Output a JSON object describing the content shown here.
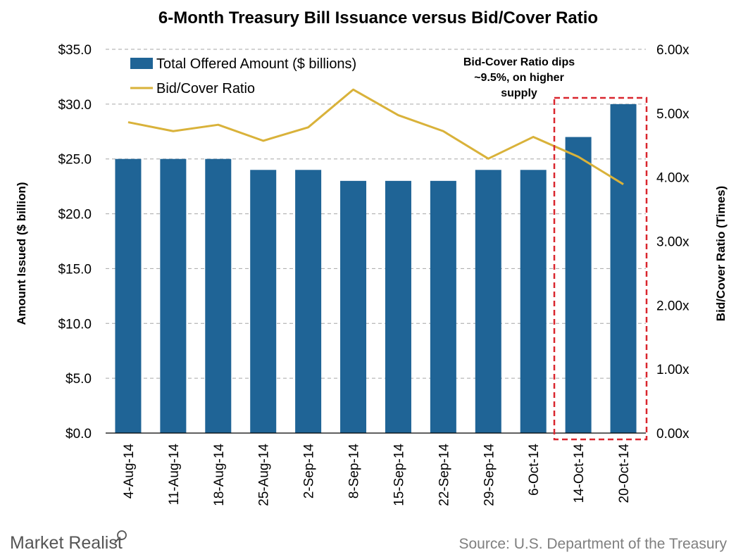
{
  "chart_data": {
    "type": "bar",
    "title": "6-Month Treasury Bill Issuance versus Bid/Cover Ratio",
    "categories": [
      "4-Aug-14",
      "11-Aug-14",
      "18-Aug-14",
      "25-Aug-14",
      "2-Sep-14",
      "8-Sep-14",
      "15-Sep-14",
      "22-Sep-14",
      "29-Sep-14",
      "6-Oct-14",
      "14-Oct-14",
      "20-Oct-14"
    ],
    "series": [
      {
        "name": "Total Offered Amount ($ billions)",
        "type": "bar",
        "axis": "left",
        "color": "#1f6496",
        "values": [
          25,
          25,
          25,
          24,
          24,
          23,
          23,
          23,
          24,
          24,
          27,
          30
        ]
      },
      {
        "name": "Bid/Cover Ratio",
        "type": "line",
        "axis": "right",
        "color": "#d9b23a",
        "values": [
          4.86,
          4.72,
          4.82,
          4.57,
          4.78,
          5.37,
          4.97,
          4.72,
          4.29,
          4.63,
          4.32,
          3.89
        ]
      }
    ],
    "ylabel": "Amount Issued ($ billion)",
    "y2label": "Bid/Cover Ratio (Times)",
    "ylim": [
      0,
      35
    ],
    "y2lim": [
      0,
      6
    ],
    "yticks": [
      "$0.0",
      "$5.0",
      "$10.0",
      "$15.0",
      "$20.0",
      "$25.0",
      "$30.0",
      "$35.0"
    ],
    "y2ticks": [
      "0.00x",
      "1.00x",
      "2.00x",
      "3.00x",
      "4.00x",
      "5.00x",
      "6.00x"
    ],
    "grid": true,
    "legend_position": "top-left",
    "annotation": {
      "lines": [
        "Bid-Cover Ratio dips",
        "~9.5%, on higher",
        "supply"
      ],
      "highlight_categories": [
        "14-Oct-14",
        "20-Oct-14"
      ],
      "highlight_color": "#d9262e"
    }
  },
  "footer": {
    "source": "Source: U.S. Department of the Treasury",
    "brand": "Market Realist"
  }
}
